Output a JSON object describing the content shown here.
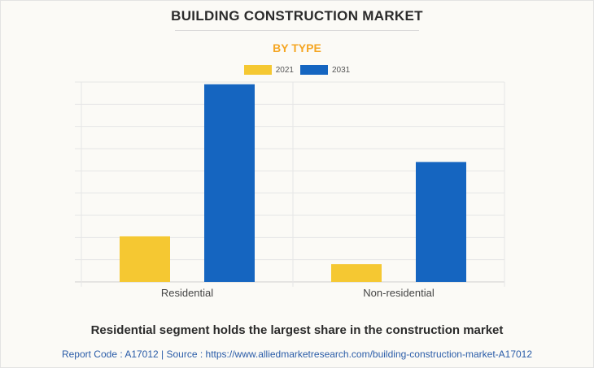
{
  "title": "BUILDING CONSTRUCTION MARKET",
  "subtitle": "BY TYPE",
  "colors": {
    "subtitle": "#f5a623",
    "series_2021": "#f5c832",
    "series_2031": "#1565c0",
    "grid": "#e6e6e6"
  },
  "chart_data": {
    "type": "bar",
    "categories": [
      "Residential",
      "Non-residential"
    ],
    "series": [
      {
        "name": "2021",
        "values": [
          20.5,
          8
        ]
      },
      {
        "name": "2031",
        "values": [
          89,
          54
        ]
      }
    ],
    "ylim": [
      0,
      90
    ],
    "grid": true,
    "legend": "top-center",
    "xlabel": "",
    "ylabel": ""
  },
  "caption": "Residential segment holds the largest share in the construction market",
  "footer": "Report Code : A17012  |  Source : https://www.alliedmarketresearch.com/building-construction-market-A17012"
}
